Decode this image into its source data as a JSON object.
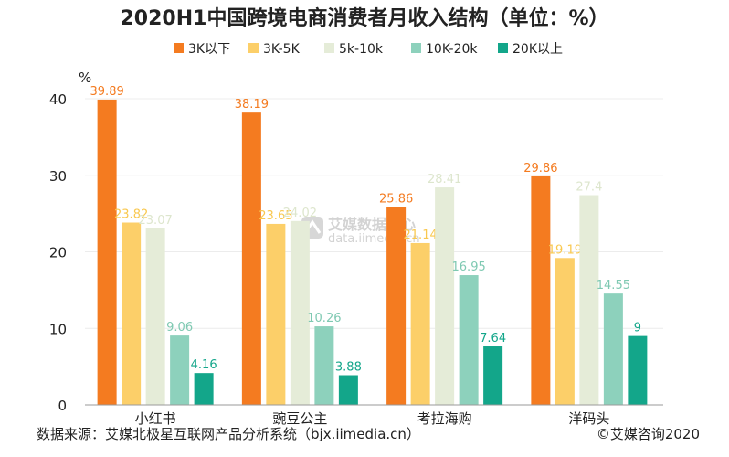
{
  "chart_data": {
    "type": "bar",
    "title": "2020H1中国跨境电商消费者月收入结构（单位：%）",
    "ylabel": "%",
    "categories": [
      "小红书",
      "豌豆公主",
      "考拉海购",
      "洋码头"
    ],
    "series": [
      {
        "name": "3K以下",
        "color": "#F47B20",
        "label_color": "#F47B20",
        "values": [
          39.89,
          38.19,
          25.86,
          29.86
        ]
      },
      {
        "name": "3K-5K",
        "color": "#FCCF69",
        "label_color": "#F9C84F",
        "values": [
          23.82,
          23.65,
          21.14,
          19.19
        ]
      },
      {
        "name": "5k-10k",
        "color": "#E5ECD8",
        "label_color": "#DDE6CD",
        "values": [
          23.07,
          24.02,
          28.41,
          27.4
        ]
      },
      {
        "name": "10K-20k",
        "color": "#8DD1BC",
        "label_color": "#7FC9B2",
        "values": [
          9.06,
          10.26,
          16.95,
          14.55
        ]
      },
      {
        "name": "20K以上",
        "color": "#13A68A",
        "label_color": "#13A68A",
        "values": [
          4.16,
          3.88,
          7.64,
          9
        ]
      }
    ],
    "ylim": [
      0,
      40
    ],
    "yticks": [
      0,
      10,
      20,
      30,
      40
    ],
    "grid": true,
    "legend_position": "top"
  },
  "footer": {
    "source": "数据来源：艾媒北极星互联网产品分析系统（bjx.iimedia.cn）",
    "copyright": "©艾媒咨询2020"
  },
  "watermark": {
    "brand": "艾媒数据中心",
    "url": "data.iimedia.cn"
  }
}
